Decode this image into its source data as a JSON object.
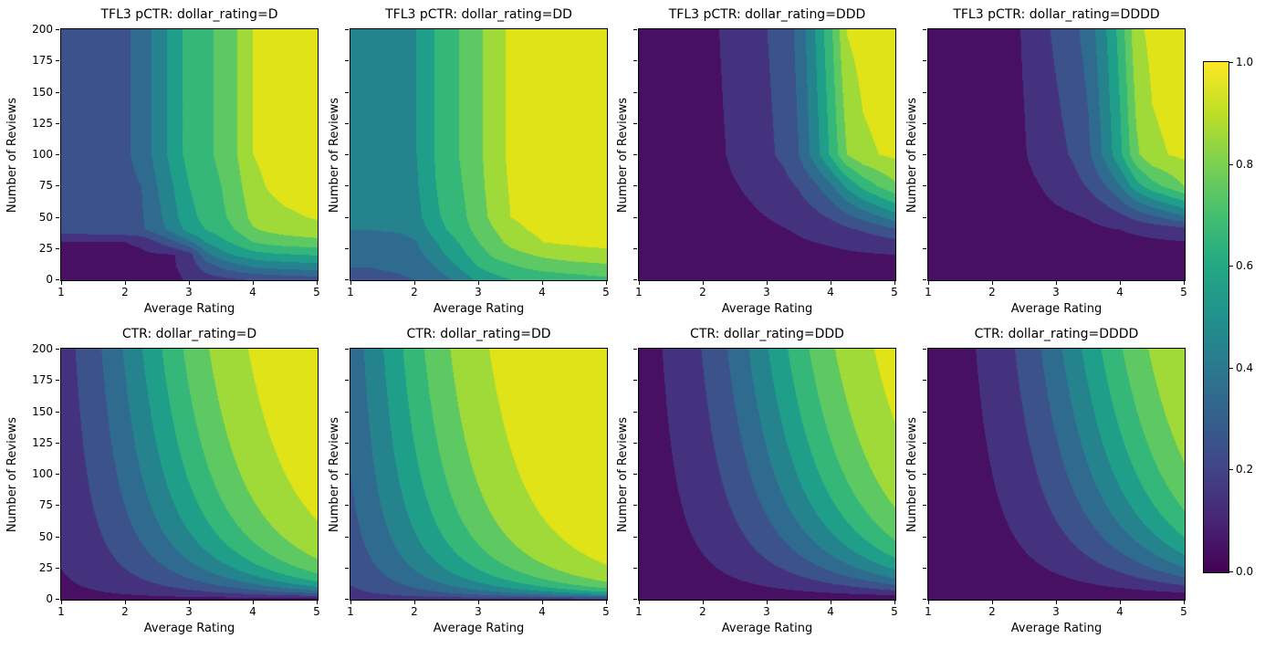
{
  "figure": {
    "background": "#ffffff",
    "x_axis_label": "Average Rating",
    "y_axis_label": "Number of Reviews",
    "x_ticks": [
      1,
      2,
      3,
      4,
      5
    ],
    "x_tick_labels": [
      "1",
      "2",
      "3",
      "4",
      "5"
    ],
    "y_ticks": [
      0,
      25,
      50,
      75,
      100,
      125,
      150,
      175,
      200
    ],
    "y_tick_labels": [
      "0",
      "25",
      "50",
      "75",
      "100",
      "125",
      "150",
      "175",
      "200"
    ],
    "colormap": "viridis",
    "band_colors": [
      "#471063",
      "#45327f",
      "#3b528b",
      "#2f6b8e",
      "#25838e",
      "#1f9e89",
      "#35b779",
      "#5ec962",
      "#a0da39",
      "#dfe318"
    ],
    "viridis_stops": [
      "#440154",
      "#482475",
      "#414487",
      "#355f8d",
      "#2a788e",
      "#21918c",
      "#22a884",
      "#44bf70",
      "#7ad151",
      "#bddf26",
      "#fde725"
    ],
    "colorbar": {
      "min": 0.0,
      "max": 1.0,
      "ticks": [
        0.0,
        0.2,
        0.4,
        0.6,
        0.8,
        1.0
      ],
      "tick_labels": [
        "0.0",
        "0.2",
        "0.4",
        "0.6",
        "0.8",
        "1.0"
      ]
    }
  },
  "chart_data": [
    {
      "type": "contourf",
      "title": "TFL3 pCTR: dollar_rating=D",
      "row": 0,
      "col": 0,
      "xlabel": "Average Rating",
      "ylabel": "Number of Reviews",
      "xlim": [
        1,
        5
      ],
      "ylim": [
        0,
        200
      ],
      "levels": [
        0,
        0.1,
        0.2,
        0.3,
        0.4,
        0.5,
        0.6,
        0.7,
        0.8,
        0.9,
        1.0
      ],
      "model": {
        "kind": "grid",
        "grid_r": [
          1,
          1.25,
          1.5,
          1.75,
          2,
          2.25,
          2.5,
          2.75,
          3,
          3.25,
          3.5,
          3.75,
          4,
          4.25,
          4.5,
          4.75,
          5
        ],
        "grid_n": [
          0,
          10,
          20,
          30,
          40,
          50,
          75,
          100,
          200
        ],
        "values": [
          [
            0.02,
            0.02,
            0.02,
            0.021,
            0.022,
            0.024,
            0.03,
            0.07,
            0.12,
            0.15,
            0.17,
            0.19,
            0.21,
            0.22,
            0.23,
            0.24,
            0.25
          ],
          [
            0.04,
            0.04,
            0.041,
            0.042,
            0.045,
            0.05,
            0.055,
            0.09,
            0.14,
            0.24,
            0.31,
            0.36,
            0.4,
            0.42,
            0.43,
            0.44,
            0.45
          ],
          [
            0.06,
            0.061,
            0.062,
            0.064,
            0.07,
            0.08,
            0.09,
            0.095,
            0.16,
            0.36,
            0.46,
            0.52,
            0.56,
            0.58,
            0.59,
            0.6,
            0.61
          ],
          [
            0.095,
            0.096,
            0.097,
            0.098,
            0.1,
            0.12,
            0.2,
            0.28,
            0.38,
            0.5,
            0.57,
            0.63,
            0.7,
            0.73,
            0.75,
            0.76,
            0.77
          ],
          [
            0.25,
            0.253,
            0.257,
            0.26,
            0.27,
            0.285,
            0.35,
            0.44,
            0.54,
            0.6,
            0.65,
            0.71,
            0.79,
            0.82,
            0.84,
            0.85,
            0.86
          ],
          [
            0.255,
            0.258,
            0.262,
            0.265,
            0.275,
            0.29,
            0.37,
            0.47,
            0.57,
            0.63,
            0.68,
            0.74,
            0.83,
            0.86,
            0.88,
            0.895,
            0.91
          ],
          [
            0.26,
            0.262,
            0.265,
            0.268,
            0.28,
            0.3,
            0.4,
            0.5,
            0.6,
            0.66,
            0.7,
            0.77,
            0.87,
            0.91,
            0.94,
            0.95,
            0.96
          ],
          [
            0.26,
            0.263,
            0.266,
            0.27,
            0.285,
            0.33,
            0.44,
            0.54,
            0.64,
            0.68,
            0.72,
            0.8,
            0.9,
            0.93,
            0.95,
            0.96,
            0.97
          ],
          [
            0.26,
            0.263,
            0.266,
            0.27,
            0.285,
            0.33,
            0.44,
            0.54,
            0.64,
            0.68,
            0.72,
            0.8,
            0.9,
            0.93,
            0.95,
            0.96,
            0.97
          ]
        ]
      }
    },
    {
      "type": "contourf",
      "title": "TFL3 pCTR: dollar_rating=DD",
      "row": 0,
      "col": 1,
      "xlabel": "Average Rating",
      "ylabel": "Number of Reviews",
      "xlim": [
        1,
        5
      ],
      "ylim": [
        0,
        200
      ],
      "levels": [
        0,
        0.1,
        0.2,
        0.3,
        0.4,
        0.5,
        0.6,
        0.7,
        0.8,
        0.9,
        1.0
      ],
      "model": {
        "kind": "grid",
        "grid_r": [
          1,
          1.25,
          1.5,
          1.75,
          2,
          2.25,
          2.5,
          2.75,
          3,
          3.25,
          3.5,
          3.75,
          4,
          4.25,
          4.5,
          4.75,
          5
        ],
        "grid_n": [
          0,
          10,
          20,
          30,
          40,
          50,
          75,
          100,
          200
        ],
        "values": [
          [
            0.28,
            0.28,
            0.285,
            0.29,
            0.3,
            0.33,
            0.38,
            0.45,
            0.52,
            0.56,
            0.6,
            0.62,
            0.64,
            0.65,
            0.66,
            0.67,
            0.68
          ],
          [
            0.3,
            0.3,
            0.305,
            0.31,
            0.33,
            0.38,
            0.45,
            0.52,
            0.6,
            0.65,
            0.68,
            0.71,
            0.73,
            0.74,
            0.75,
            0.76,
            0.77
          ],
          [
            0.33,
            0.33,
            0.335,
            0.34,
            0.36,
            0.43,
            0.51,
            0.58,
            0.66,
            0.72,
            0.76,
            0.79,
            0.82,
            0.84,
            0.86,
            0.87,
            0.88
          ],
          [
            0.36,
            0.36,
            0.365,
            0.37,
            0.39,
            0.47,
            0.55,
            0.62,
            0.7,
            0.76,
            0.83,
            0.87,
            0.9,
            0.91,
            0.915,
            0.92,
            0.92
          ],
          [
            0.4,
            0.4,
            0.405,
            0.41,
            0.43,
            0.52,
            0.6,
            0.66,
            0.74,
            0.8,
            0.87,
            0.9,
            0.92,
            0.93,
            0.935,
            0.94,
            0.945
          ],
          [
            0.43,
            0.43,
            0.435,
            0.44,
            0.46,
            0.55,
            0.63,
            0.68,
            0.76,
            0.83,
            0.9,
            0.92,
            0.94,
            0.945,
            0.95,
            0.955,
            0.955
          ],
          [
            0.445,
            0.447,
            0.45,
            0.455,
            0.48,
            0.57,
            0.66,
            0.7,
            0.77,
            0.85,
            0.91,
            0.925,
            0.945,
            0.95,
            0.955,
            0.96,
            0.965
          ],
          [
            0.45,
            0.452,
            0.455,
            0.46,
            0.49,
            0.58,
            0.67,
            0.71,
            0.78,
            0.86,
            0.92,
            0.93,
            0.95,
            0.955,
            0.96,
            0.965,
            0.97
          ],
          [
            0.45,
            0.452,
            0.455,
            0.46,
            0.49,
            0.58,
            0.67,
            0.71,
            0.78,
            0.86,
            0.92,
            0.93,
            0.95,
            0.955,
            0.96,
            0.965,
            0.97
          ]
        ]
      }
    },
    {
      "type": "contourf",
      "title": "TFL3 pCTR: dollar_rating=DDD",
      "row": 0,
      "col": 2,
      "xlabel": "Average Rating",
      "ylabel": "Number of Reviews",
      "xlim": [
        1,
        5
      ],
      "ylim": [
        0,
        200
      ],
      "levels": [
        0,
        0.1,
        0.2,
        0.3,
        0.4,
        0.5,
        0.6,
        0.7,
        0.8,
        0.9,
        1.0
      ],
      "model": {
        "kind": "grid",
        "grid_r": [
          1,
          1.25,
          1.5,
          1.75,
          2,
          2.25,
          2.5,
          2.75,
          3,
          3.25,
          3.5,
          3.75,
          4,
          4.25,
          4.5,
          4.75,
          5
        ],
        "grid_n": [
          0,
          10,
          20,
          30,
          40,
          50,
          75,
          100,
          200
        ],
        "values": [
          [
            0.02,
            0.022,
            0.024,
            0.026,
            0.028,
            0.032,
            0.035,
            0.038,
            0.04,
            0.042,
            0.044,
            0.046,
            0.048,
            0.049,
            0.05,
            0.05,
            0.05
          ],
          [
            0.022,
            0.024,
            0.026,
            0.028,
            0.032,
            0.038,
            0.042,
            0.046,
            0.05,
            0.053,
            0.056,
            0.06,
            0.064,
            0.068,
            0.07,
            0.072,
            0.075
          ],
          [
            0.025,
            0.027,
            0.03,
            0.033,
            0.037,
            0.044,
            0.05,
            0.055,
            0.06,
            0.065,
            0.07,
            0.075,
            0.08,
            0.085,
            0.09,
            0.095,
            0.1
          ],
          [
            0.028,
            0.03,
            0.034,
            0.038,
            0.042,
            0.05,
            0.058,
            0.065,
            0.072,
            0.08,
            0.09,
            0.1,
            0.11,
            0.125,
            0.14,
            0.155,
            0.17
          ],
          [
            0.03,
            0.033,
            0.037,
            0.042,
            0.047,
            0.057,
            0.066,
            0.075,
            0.085,
            0.095,
            0.11,
            0.13,
            0.15,
            0.18,
            0.21,
            0.245,
            0.28
          ],
          [
            0.032,
            0.035,
            0.04,
            0.045,
            0.05,
            0.063,
            0.075,
            0.086,
            0.1,
            0.115,
            0.14,
            0.17,
            0.21,
            0.27,
            0.33,
            0.39,
            0.45
          ],
          [
            0.035,
            0.039,
            0.044,
            0.049,
            0.056,
            0.075,
            0.095,
            0.115,
            0.14,
            0.165,
            0.21,
            0.28,
            0.38,
            0.52,
            0.63,
            0.71,
            0.78
          ],
          [
            0.038,
            0.042,
            0.047,
            0.052,
            0.06,
            0.085,
            0.12,
            0.15,
            0.18,
            0.22,
            0.3,
            0.45,
            0.62,
            0.8,
            0.88,
            0.9,
            0.92
          ],
          [
            0.04,
            0.045,
            0.05,
            0.055,
            0.065,
            0.1,
            0.14,
            0.17,
            0.2,
            0.24,
            0.33,
            0.5,
            0.68,
            0.905,
            0.94,
            0.955,
            0.96
          ]
        ]
      }
    },
    {
      "type": "contourf",
      "title": "TFL3 pCTR: dollar_rating=DDDD",
      "row": 0,
      "col": 3,
      "xlabel": "Average Rating",
      "ylabel": "Number of Reviews",
      "xlim": [
        1,
        5
      ],
      "ylim": [
        0,
        200
      ],
      "levels": [
        0,
        0.1,
        0.2,
        0.3,
        0.4,
        0.5,
        0.6,
        0.7,
        0.8,
        0.9,
        1.0
      ],
      "model": {
        "kind": "grid",
        "grid_r": [
          1,
          1.25,
          1.5,
          1.75,
          2,
          2.25,
          2.5,
          2.75,
          3,
          3.25,
          3.5,
          3.75,
          4,
          4.25,
          4.5,
          4.75,
          5
        ],
        "grid_n": [
          0,
          10,
          20,
          30,
          40,
          50,
          75,
          100,
          200
        ],
        "values": [
          [
            0.02,
            0.021,
            0.022,
            0.023,
            0.025,
            0.028,
            0.03,
            0.032,
            0.034,
            0.036,
            0.038,
            0.04,
            0.042,
            0.044,
            0.046,
            0.048,
            0.05
          ],
          [
            0.021,
            0.022,
            0.024,
            0.026,
            0.028,
            0.032,
            0.035,
            0.038,
            0.04,
            0.043,
            0.046,
            0.05,
            0.053,
            0.056,
            0.06,
            0.062,
            0.065
          ],
          [
            0.023,
            0.025,
            0.027,
            0.029,
            0.032,
            0.036,
            0.04,
            0.044,
            0.048,
            0.052,
            0.056,
            0.06,
            0.064,
            0.068,
            0.072,
            0.076,
            0.08
          ],
          [
            0.025,
            0.027,
            0.03,
            0.032,
            0.035,
            0.04,
            0.045,
            0.05,
            0.055,
            0.06,
            0.065,
            0.07,
            0.075,
            0.08,
            0.085,
            0.09,
            0.095
          ],
          [
            0.027,
            0.03,
            0.033,
            0.036,
            0.04,
            0.046,
            0.052,
            0.058,
            0.065,
            0.072,
            0.08,
            0.09,
            0.1,
            0.115,
            0.13,
            0.145,
            0.16
          ],
          [
            0.03,
            0.033,
            0.036,
            0.04,
            0.044,
            0.052,
            0.06,
            0.07,
            0.08,
            0.09,
            0.105,
            0.13,
            0.17,
            0.23,
            0.28,
            0.33,
            0.38
          ],
          [
            0.032,
            0.035,
            0.04,
            0.045,
            0.05,
            0.062,
            0.078,
            0.1,
            0.13,
            0.16,
            0.21,
            0.29,
            0.4,
            0.56,
            0.66,
            0.73,
            0.8
          ],
          [
            0.034,
            0.038,
            0.043,
            0.048,
            0.055,
            0.07,
            0.095,
            0.13,
            0.17,
            0.21,
            0.28,
            0.42,
            0.58,
            0.78,
            0.88,
            0.9,
            0.92
          ],
          [
            0.03,
            0.034,
            0.038,
            0.044,
            0.05,
            0.07,
            0.11,
            0.17,
            0.22,
            0.27,
            0.34,
            0.48,
            0.64,
            0.87,
            0.93,
            0.95,
            0.96
          ]
        ]
      }
    },
    {
      "type": "contourf",
      "title": "CTR: dollar_rating=D",
      "row": 1,
      "col": 0,
      "xlabel": "Average Rating",
      "ylabel": "Number of Reviews",
      "xlim": [
        1,
        5
      ],
      "ylim": [
        0,
        200
      ],
      "levels": [
        0,
        0.1,
        0.2,
        0.3,
        0.4,
        0.5,
        0.6,
        0.7,
        0.8,
        0.9,
        1.0
      ],
      "model": {
        "kind": "sigmoid",
        "formula": "ctr = 1 / (1 + exp(baseline - avg_rating * log1p(num_reviews) / 4))",
        "baseline": 3.0
      }
    },
    {
      "type": "contourf",
      "title": "CTR: dollar_rating=DD",
      "row": 1,
      "col": 1,
      "xlabel": "Average Rating",
      "ylabel": "Number of Reviews",
      "xlim": [
        1,
        5
      ],
      "ylim": [
        0,
        200
      ],
      "levels": [
        0,
        0.1,
        0.2,
        0.3,
        0.4,
        0.5,
        0.6,
        0.7,
        0.8,
        0.9,
        1.0
      ],
      "model": {
        "kind": "sigmoid",
        "formula": "ctr = 1 / (1 + exp(baseline - avg_rating * log1p(num_reviews) / 4))",
        "baseline": 2.0
      }
    },
    {
      "type": "contourf",
      "title": "CTR: dollar_rating=DDD",
      "row": 1,
      "col": 2,
      "xlabel": "Average Rating",
      "ylabel": "Number of Reviews",
      "xlim": [
        1,
        5
      ],
      "ylim": [
        0,
        200
      ],
      "levels": [
        0,
        0.1,
        0.2,
        0.3,
        0.4,
        0.5,
        0.6,
        0.7,
        0.8,
        0.9,
        1.0
      ],
      "model": {
        "kind": "sigmoid",
        "formula": "ctr = 1 / (1 + exp(baseline - avg_rating * log1p(num_reviews) / 4))",
        "baseline": 4.0
      }
    },
    {
      "type": "contourf",
      "title": "CTR: dollar_rating=DDDD",
      "row": 1,
      "col": 3,
      "xlabel": "Average Rating",
      "ylabel": "Number of Reviews",
      "xlim": [
        1,
        5
      ],
      "ylim": [
        0,
        200
      ],
      "levels": [
        0,
        0.1,
        0.2,
        0.3,
        0.4,
        0.5,
        0.6,
        0.7,
        0.8,
        0.9,
        1.0
      ],
      "model": {
        "kind": "sigmoid",
        "formula": "ctr = 1 / (1 + exp(baseline - avg_rating * log1p(num_reviews) / 4))",
        "baseline": 4.5
      }
    }
  ]
}
